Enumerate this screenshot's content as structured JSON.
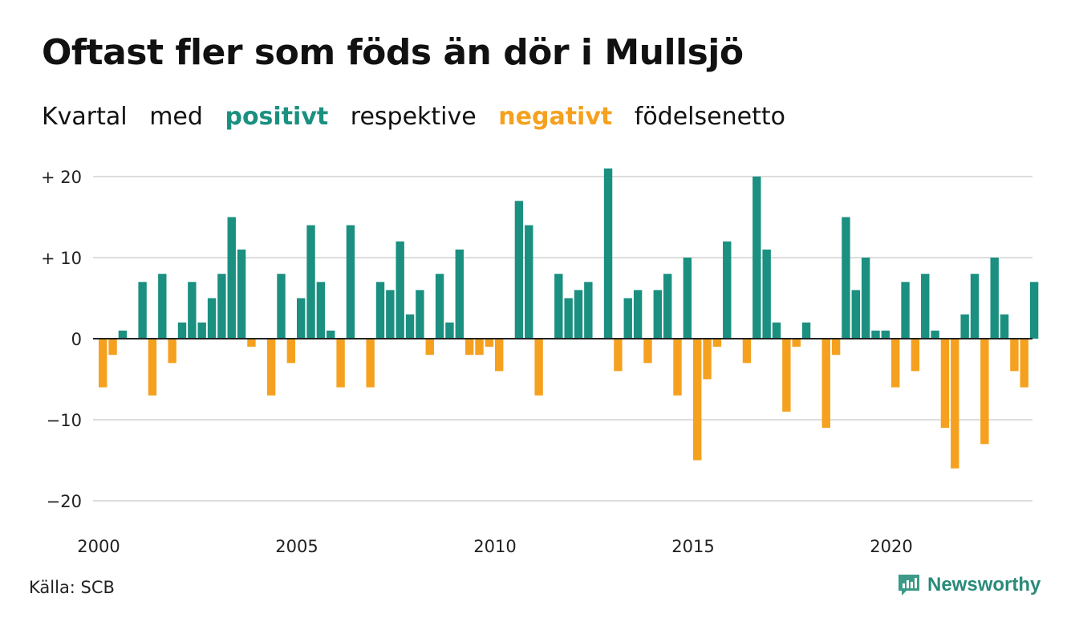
{
  "header": {
    "title": "Oftast fler som föds än dör i Mullsjö",
    "subtitle": {
      "part1": "Kvartal",
      "part2": "med",
      "positive_word": "positivt",
      "part3": "respektive",
      "negative_word": "negativt",
      "part4": "födelsenetto"
    }
  },
  "footer": {
    "source": "Källa: SCB",
    "brand": "Newsworthy",
    "brand_icon": "newsworthy-logo-icon"
  },
  "colors": {
    "positive": "#1b9080",
    "negative": "#f5a11f",
    "grid": "#dddddd",
    "axis": "#222222"
  },
  "chart_data": {
    "type": "bar",
    "x_start": "2000 Q1",
    "frequency": "quarterly",
    "values": [
      -6,
      -2,
      1,
      0,
      7,
      -7,
      8,
      -3,
      2,
      7,
      2,
      5,
      8,
      15,
      11,
      -1,
      0,
      -7,
      8,
      -3,
      5,
      14,
      7,
      1,
      -6,
      14,
      0,
      -6,
      7,
      6,
      12,
      3,
      6,
      -2,
      8,
      2,
      11,
      -2,
      -2,
      -1,
      -4,
      0,
      17,
      14,
      -7,
      0,
      8,
      5,
      6,
      7,
      0,
      21,
      -4,
      5,
      6,
      -3,
      6,
      8,
      -7,
      10,
      -15,
      -5,
      -1,
      12,
      0,
      -3,
      20,
      11,
      2,
      -9,
      -1,
      2,
      0,
      -11,
      -2,
      15,
      6,
      10,
      1,
      1,
      -6,
      7,
      -4,
      8,
      1,
      -11,
      -16,
      3,
      8,
      -13,
      10,
      3,
      -4,
      -6,
      7
    ],
    "x_ticks": [
      {
        "label": "2000",
        "year": 2000
      },
      {
        "label": "2005",
        "year": 2005
      },
      {
        "label": "2010",
        "year": 2010
      },
      {
        "label": "2015",
        "year": 2015
      },
      {
        "label": "2020",
        "year": 2020
      }
    ],
    "y_ticks": [
      {
        "label": "+ 20",
        "value": 20
      },
      {
        "label": "+ 10",
        "value": 10
      },
      {
        "label": "0",
        "value": 0
      },
      {
        "label": "−10",
        "value": -10
      },
      {
        "label": "−20",
        "value": -20
      }
    ],
    "ylim": [
      -21,
      21
    ],
    "grid": true,
    "legend": "subtitle"
  }
}
